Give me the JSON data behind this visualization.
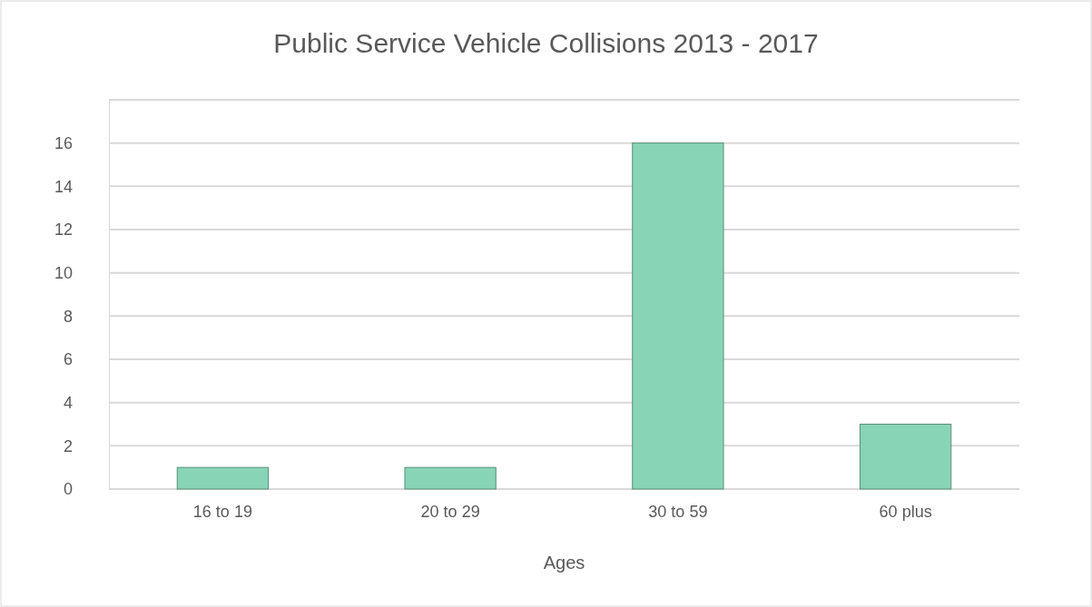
{
  "chart_data": {
    "type": "bar",
    "title": "Public Service Vehicle Collisions 2013 - 2017",
    "xlabel": "Ages",
    "categories": [
      "16 to 19",
      "20 to 29",
      "30 to 59",
      "60 plus"
    ],
    "values": [
      1,
      1,
      16,
      3
    ],
    "color": "#88d4b6",
    "ylim": [
      0,
      18
    ],
    "yticks": [
      0,
      2,
      4,
      6,
      8,
      10,
      12,
      14,
      16,
      {
        "value": 18,
        "label": null
      }
    ],
    "grid": true
  }
}
